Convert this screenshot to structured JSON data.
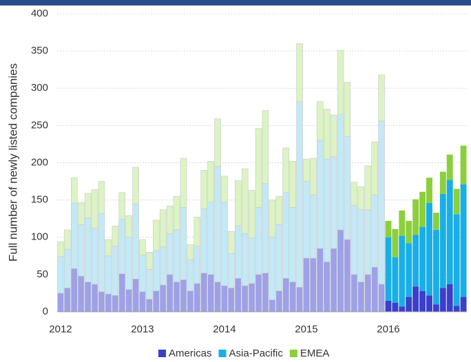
{
  "chart_data": {
    "type": "stacked-bar",
    "y_label": "Full number of newly listed companies",
    "categories": [
      "2012",
      null,
      null,
      null,
      null,
      null,
      null,
      null,
      null,
      null,
      null,
      null,
      "2013",
      null,
      null,
      null,
      null,
      null,
      null,
      null,
      null,
      null,
      null,
      null,
      "2014",
      null,
      null,
      null,
      null,
      null,
      null,
      null,
      null,
      null,
      null,
      null,
      "2015",
      null,
      null,
      null,
      null,
      null,
      null,
      null,
      null,
      null,
      null,
      null,
      "2016",
      null,
      null,
      null,
      null,
      null,
      null,
      null,
      null,
      null,
      null,
      null
    ],
    "series": [
      {
        "name": "Americas",
        "color": "#3a40c9",
        "faded_color": "#9ea1e8",
        "values": [
          25,
          32,
          58,
          48,
          40,
          37,
          27,
          24,
          22,
          51,
          30,
          44,
          27,
          17,
          28,
          36,
          50,
          40,
          43,
          28,
          38,
          52,
          50,
          40,
          35,
          32,
          45,
          35,
          38,
          50,
          52,
          16,
          28,
          45,
          40,
          33,
          72,
          72,
          85,
          67,
          85,
          110,
          97,
          50,
          40,
          50,
          60,
          37,
          15,
          12,
          7,
          20,
          34,
          28,
          22,
          10,
          32,
          37,
          8,
          20
        ]
      },
      {
        "name": "Asia-Pacific",
        "color": "#1aaee6",
        "faded_color": "#c3e8f6",
        "values": [
          49,
          52,
          88,
          69,
          86,
          75,
          105,
          51,
          66,
          73,
          70,
          101,
          49,
          40,
          54,
          51,
          55,
          70,
          97,
          42,
          50,
          86,
          97,
          155,
          112,
          46,
          70,
          70,
          61,
          90,
          120,
          84,
          89,
          115,
          100,
          249,
          103,
          85,
          145,
          138,
          123,
          155,
          138,
          93,
          97,
          87,
          97,
          219,
          85,
          61,
          95,
          72,
          69,
          86,
          124,
          100,
          126,
          140,
          123,
          151
        ]
      },
      {
        "name": "EMEA",
        "color": "#8ccf3c",
        "faded_color": "#dcf3c3",
        "values": [
          20,
          26,
          34,
          30,
          33,
          52,
          43,
          22,
          27,
          36,
          29,
          49,
          21,
          23,
          41,
          50,
          37,
          45,
          66,
          20,
          39,
          52,
          55,
          64,
          35,
          30,
          61,
          87,
          64,
          106,
          98,
          50,
          38,
          60,
          62,
          78,
          30,
          49,
          52,
          67,
          56,
          86,
          73,
          31,
          31,
          59,
          71,
          62,
          22,
          38,
          34,
          30,
          48,
          47,
          34,
          23,
          30,
          34,
          34,
          52
        ]
      }
    ],
    "ylim": [
      0,
      400
    ],
    "yticks": [
      0,
      50,
      100,
      150,
      200,
      250,
      300,
      350,
      400
    ],
    "grid": true,
    "legend": "bottom"
  }
}
